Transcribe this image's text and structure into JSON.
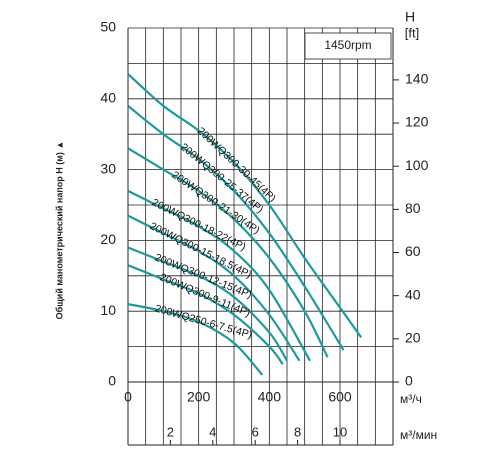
{
  "chart_data": {
    "type": "line",
    "y_label": "Общий манометрический напор H (м) ▲",
    "x_unit": "м³/ч",
    "x2_unit": "м³/мин",
    "y2_label": "H",
    "y2_unit": "[ft]",
    "annotation": "1450rpm",
    "xlim": [
      0,
      750
    ],
    "xticks": [
      0,
      200,
      400,
      600
    ],
    "minor_xticks": [
      50,
      100,
      150,
      250,
      300,
      350,
      450,
      500,
      550,
      650,
      700,
      750
    ],
    "x2lim": [
      0,
      12.5
    ],
    "x2ticks": [
      2,
      4,
      6,
      8,
      10
    ],
    "ylim": [
      0,
      50
    ],
    "yticks": [
      0,
      10,
      20,
      30,
      40,
      50
    ],
    "minor_yticks": [
      5,
      15,
      25,
      35,
      45
    ],
    "y2lim": [
      0,
      164.04
    ],
    "y2ticks": [
      0,
      20,
      40,
      60,
      80,
      100,
      120,
      140
    ],
    "grid": true,
    "series": [
      {
        "name": "200WQ300-30-45(4P)",
        "color": "#1c9a9c",
        "x": [
          0,
          100,
          200,
          300,
          400,
          500,
          600,
          660
        ],
        "values": [
          43.5,
          39,
          35.5,
          31,
          25,
          17.5,
          10.5,
          6.3
        ]
      },
      {
        "name": "200WQ300-25-37(4P)",
        "color": "#1c9a9c",
        "x": [
          0,
          100,
          200,
          300,
          400,
          500,
          610
        ],
        "values": [
          39,
          35,
          31.5,
          27,
          21,
          13.5,
          4.5
        ]
      },
      {
        "name": "200WQ300-21-30(4P)",
        "color": "#1c9a9c",
        "x": [
          0,
          100,
          200,
          300,
          400,
          500,
          565
        ],
        "values": [
          33,
          30,
          27,
          23,
          17.5,
          10,
          3.5
        ]
      },
      {
        "name": "200WQ300-18-22(4P)",
        "color": "#1c9a9c",
        "x": [
          0,
          100,
          200,
          300,
          400,
          515
        ],
        "values": [
          27,
          24.5,
          22,
          18.5,
          13,
          3
        ]
      },
      {
        "name": "200WQ300-15-18.5(4P)",
        "color": "#1c9a9c",
        "x": [
          0,
          100,
          200,
          300,
          400,
          485
        ],
        "values": [
          23.5,
          21,
          18.5,
          15,
          9.5,
          3
        ]
      },
      {
        "name": "200WQ300-12-15(4P)",
        "color": "#1c9a9c",
        "x": [
          0,
          100,
          200,
          300,
          400,
          450
        ],
        "values": [
          19,
          17,
          15,
          12,
          7,
          3
        ]
      },
      {
        "name": "200WQ300-9-11(4P)",
        "color": "#1c9a9c",
        "x": [
          0,
          100,
          200,
          300,
          400,
          438
        ],
        "values": [
          16.5,
          14.5,
          12.5,
          9.5,
          5,
          2.5
        ]
      },
      {
        "name": "200WQ250-6-7.5(4P)",
        "color": "#1c9a9c",
        "x": [
          0,
          100,
          200,
          300,
          380
        ],
        "values": [
          11,
          10,
          8.5,
          5.5,
          1
        ]
      }
    ]
  }
}
